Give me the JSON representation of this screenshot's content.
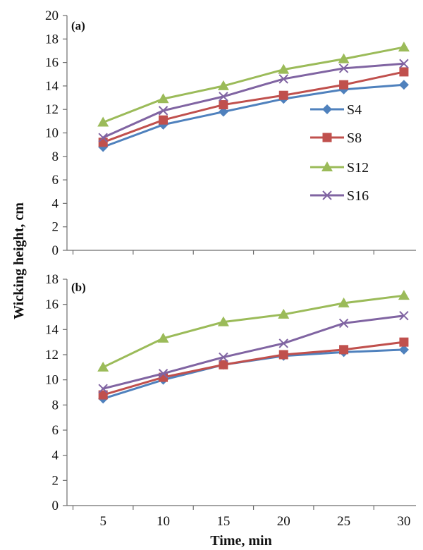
{
  "chart_data": [
    {
      "type": "line",
      "panel_label": "(a)",
      "x": [
        5,
        10,
        15,
        20,
        25,
        30
      ],
      "xlim": [
        2,
        31
      ],
      "ylim": [
        0,
        20
      ],
      "yticks": [
        0,
        2,
        4,
        6,
        8,
        10,
        12,
        14,
        16,
        18,
        20
      ],
      "ylabel": "Wicking height, cm",
      "legend": "right",
      "grid": false,
      "series": [
        {
          "name": "S4",
          "color": "#4f81bd",
          "marker": "diamond",
          "values": [
            8.8,
            10.7,
            11.8,
            12.9,
            13.7,
            14.1
          ]
        },
        {
          "name": "S8",
          "color": "#c0504d",
          "marker": "square",
          "values": [
            9.2,
            11.1,
            12.4,
            13.2,
            14.1,
            15.2
          ]
        },
        {
          "name": "S12",
          "color": "#9bbb59",
          "marker": "triangle",
          "values": [
            10.9,
            12.9,
            14.0,
            15.4,
            16.3,
            17.3
          ]
        },
        {
          "name": "S16",
          "color": "#8064a2",
          "marker": "x",
          "values": [
            9.6,
            11.9,
            13.1,
            14.6,
            15.5,
            15.9
          ]
        }
      ]
    },
    {
      "type": "line",
      "panel_label": "(b)",
      "x": [
        5,
        10,
        15,
        20,
        25,
        30
      ],
      "xlim": [
        2,
        31
      ],
      "ylim": [
        0,
        18
      ],
      "yticks": [
        0,
        2,
        4,
        6,
        8,
        10,
        12,
        14,
        16,
        18
      ],
      "xticks": [
        5,
        10,
        15,
        20,
        25,
        30
      ],
      "xlabel": "Time, min",
      "grid": false,
      "series": [
        {
          "name": "S4",
          "color": "#4f81bd",
          "marker": "diamond",
          "values": [
            8.5,
            10.0,
            11.2,
            11.9,
            12.2,
            12.4
          ]
        },
        {
          "name": "S8",
          "color": "#c0504d",
          "marker": "square",
          "values": [
            8.8,
            10.2,
            11.2,
            12.0,
            12.4,
            13.0
          ]
        },
        {
          "name": "S12",
          "color": "#9bbb59",
          "marker": "triangle",
          "values": [
            11.0,
            13.3,
            14.6,
            15.2,
            16.1,
            16.7
          ]
        },
        {
          "name": "S16",
          "color": "#8064a2",
          "marker": "x",
          "values": [
            9.3,
            10.5,
            11.8,
            12.9,
            14.5,
            15.1
          ]
        }
      ]
    }
  ]
}
